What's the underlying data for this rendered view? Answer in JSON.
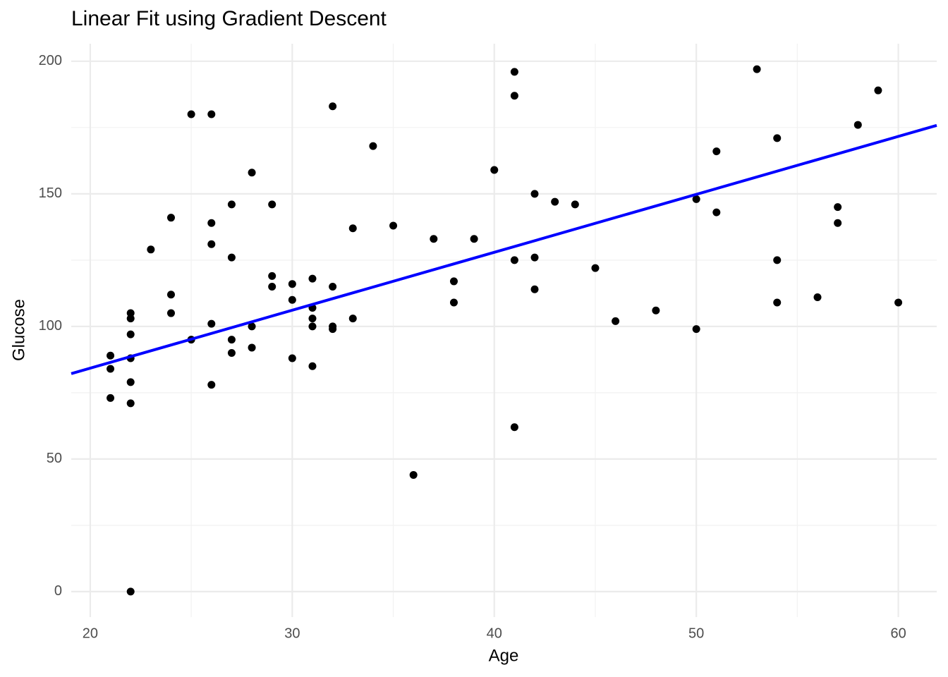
{
  "chart_data": {
    "type": "scatter",
    "title": "Linear Fit using Gradient Descent",
    "x_label": "Age",
    "y_label": "Glucose",
    "xlim": [
      19.06,
      61.9
    ],
    "ylim": [
      -9.6,
      206.6
    ],
    "xticks": [
      20,
      30,
      40,
      50,
      60
    ],
    "yticks": [
      0,
      50,
      100,
      150,
      200
    ],
    "minor_xticks": [
      25,
      35,
      45,
      55
    ],
    "minor_yticks": [
      25,
      75,
      125,
      175
    ],
    "grid": true,
    "color": "#000000",
    "x": [
      25,
      26,
      32,
      34,
      28,
      24,
      23,
      26,
      26,
      27,
      29,
      27,
      29,
      29,
      30,
      31,
      32,
      24,
      24,
      30,
      31,
      31,
      31,
      32,
      32,
      33,
      33,
      35,
      37,
      39,
      40,
      41,
      41,
      42,
      43,
      44,
      41,
      42,
      42,
      38,
      38,
      45,
      46,
      48,
      50,
      50,
      51,
      51,
      53,
      54,
      54,
      54,
      56,
      57,
      57,
      58,
      59,
      60,
      41,
      36,
      22,
      21,
      21,
      21,
      22,
      22,
      22,
      22,
      22,
      22,
      25,
      26,
      26,
      27,
      27,
      28,
      28,
      30,
      31
    ],
    "values": [
      180,
      180,
      183,
      168,
      158,
      141,
      129,
      139,
      131,
      146,
      146,
      126,
      119,
      115,
      116,
      118,
      115,
      112,
      105,
      110,
      107,
      103,
      100,
      100,
      99,
      103,
      137,
      138,
      133,
      133,
      159,
      196,
      187,
      150,
      147,
      146,
      125,
      126,
      114,
      117,
      109,
      122,
      102,
      106,
      148,
      99,
      166,
      143,
      197,
      171,
      125,
      109,
      111,
      145,
      139,
      176,
      189,
      109,
      62,
      44,
      0,
      89,
      84,
      73,
      105,
      103,
      97,
      88,
      79,
      71,
      95,
      101,
      78,
      95,
      90,
      100,
      92,
      88,
      85
    ],
    "fit": {
      "color": "#0000ff",
      "x": [
        19.06,
        61.9
      ],
      "y": [
        82.2,
        175.8
      ]
    }
  }
}
